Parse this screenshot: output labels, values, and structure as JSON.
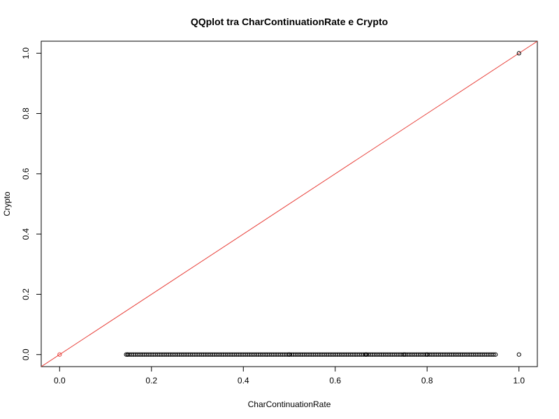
{
  "chart_data": {
    "type": "scatter",
    "title": "QQplot tra CharContinuationRate e Crypto",
    "xlabel": "CharContinuationRate",
    "ylabel": "Crypto",
    "xlim": [
      -0.04,
      1.04
    ],
    "ylim": [
      -0.04,
      1.04
    ],
    "x_ticks": [
      0.0,
      0.2,
      0.4,
      0.6,
      0.8,
      1.0
    ],
    "x_tick_labels": [
      "0.0",
      "0.2",
      "0.4",
      "0.6",
      "0.8",
      "1.0"
    ],
    "y_ticks": [
      0.0,
      0.2,
      0.4,
      0.6,
      0.8,
      1.0
    ],
    "y_tick_labels": [
      "0.0",
      "0.2",
      "0.4",
      "0.6",
      "0.8",
      "1.0"
    ],
    "grid": false,
    "reference_line": {
      "intercept": 0,
      "slope": 1,
      "color": "#e8413b"
    },
    "point_color": "#000000",
    "series": [
      {
        "points_at_zero": {
          "y": 0,
          "x_range": [
            0.145,
            0.952
          ],
          "x_step": 0.004
        },
        "points": [
          {
            "x": 0.0,
            "y": 0.0,
            "color": "#e8413b"
          },
          {
            "x": 0.148,
            "y": 0.0
          },
          {
            "x": 0.5,
            "y": 0.0
          },
          {
            "x": 0.667,
            "y": 0.0
          },
          {
            "x": 0.75,
            "y": 0.0
          },
          {
            "x": 0.8,
            "y": 0.0
          },
          {
            "x": 1.0,
            "y": 0.0
          },
          {
            "x": 1.0,
            "y": 1.0
          }
        ]
      }
    ]
  }
}
